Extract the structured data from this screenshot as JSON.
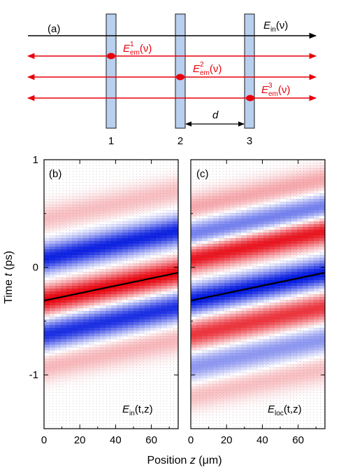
{
  "panel_a": {
    "label": "(a)",
    "input_label": {
      "main": "E",
      "sub": "in",
      "arg": "(ν)"
    },
    "emitted_labels": [
      {
        "main": "E",
        "sup": "1",
        "sub": "em",
        "arg": "(ν)"
      },
      {
        "main": "E",
        "sup": "2",
        "sub": "em",
        "arg": "(ν)"
      },
      {
        "main": "E",
        "sup": "3",
        "sub": "em",
        "arg": "(ν)"
      }
    ],
    "layer_numbers": [
      "1",
      "2",
      "3"
    ],
    "spacing_label": "d",
    "colors": {
      "input_arrow": "#000000",
      "emitted_arrow": "#e8000b",
      "layer_fill": "#b8cfee",
      "layer_stroke": "#1a1a1a"
    }
  },
  "chart_data": [
    {
      "type": "heatmap",
      "panel_label": "(b)",
      "field_label": {
        "main": "E",
        "sub": "in",
        "arg": "(t,z)"
      },
      "xlabel": "Position z (μm)",
      "ylabel": "Time t (ps)",
      "xlim": [
        0,
        75
      ],
      "ylim": [
        -1.5,
        1
      ],
      "xticks": [
        "0",
        "20",
        "40",
        "60"
      ],
      "xtick_values": [
        0,
        20,
        40,
        60
      ],
      "yticks": [
        "1",
        "0",
        "-1"
      ],
      "ytick_values": [
        1,
        0,
        -1
      ],
      "colormap": {
        "positive": "#e8000b",
        "negative": "#0016e0",
        "zero": "#ffffff"
      },
      "trend_line": {
        "x": [
          0,
          75
        ],
        "y": [
          -0.31,
          -0.05
        ],
        "color": "#000000"
      },
      "band_centers_at_z0": [
        0.45,
        0.08,
        -0.31,
        -0.63,
        -0.93
      ],
      "band_signs": [
        1,
        -1,
        1,
        -1,
        1
      ],
      "band_amplitudes": [
        0.25,
        0.95,
        1.0,
        0.9,
        0.28
      ]
    },
    {
      "type": "heatmap",
      "panel_label": "(c)",
      "field_label": {
        "main": "E",
        "sub": "loc",
        "arg": "(t,z)"
      },
      "xlabel": "Position z (μm)",
      "ylabel": "Time t (ps)",
      "xlim": [
        0,
        75
      ],
      "ylim": [
        -1.5,
        1
      ],
      "xticks": [
        "0",
        "20",
        "40",
        "60"
      ],
      "xtick_values": [
        0,
        20,
        40,
        60
      ],
      "yticks": [
        "1",
        "0",
        "-1"
      ],
      "ytick_values": [
        1,
        0,
        -1
      ],
      "colormap": {
        "positive": "#e8000b",
        "negative": "#0016e0",
        "zero": "#ffffff"
      },
      "trend_line": {
        "x": [
          0,
          75
        ],
        "y": [
          -0.31,
          -0.05
        ],
        "color": "#000000"
      },
      "band_centers_at_z0": [
        0.55,
        0.3,
        0.08,
        -0.31,
        -0.63,
        -0.93,
        -1.2
      ],
      "band_signs": [
        1,
        -1,
        1,
        -1,
        1,
        -1,
        1
      ],
      "band_amplitudes": [
        0.35,
        0.6,
        0.95,
        1.0,
        0.8,
        0.45,
        0.25
      ]
    }
  ],
  "axis_titles": {
    "x": {
      "prefix": "Position ",
      "var": "z",
      "suffix": " (",
      "unit_mu": "μ",
      "unit_rest": "m)"
    },
    "y": {
      "prefix": "Time ",
      "var": "t",
      "suffix": " (ps)"
    }
  }
}
